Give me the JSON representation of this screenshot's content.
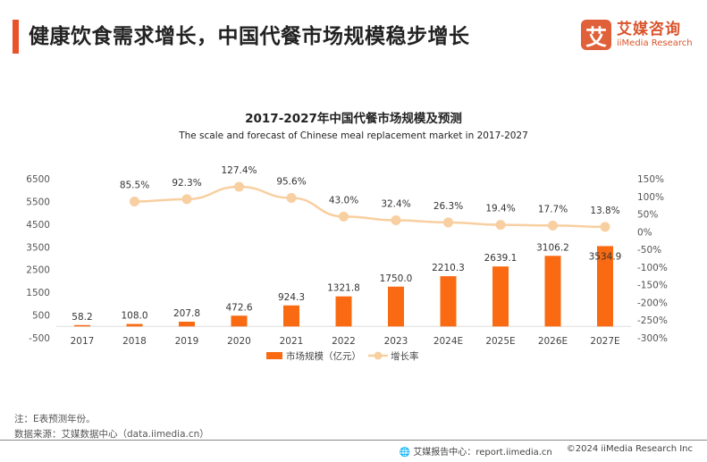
{
  "header": {
    "title": "健康饮食需求增长，中国代餐市场规模稳步增长",
    "logo_cn": "艾媒咨询",
    "logo_en": "iiMedia Research",
    "logo_mark": "艾"
  },
  "colors": {
    "bar": "#f96a12",
    "line": "#f8cfa0",
    "accent": "#e8532c"
  },
  "chart_data": {
    "type": "bar+line",
    "title": "2017-2027年中国代餐市场规模及预测",
    "subtitle": "The scale and forecast of Chinese meal replacement market in 2017-2027",
    "categories": [
      "2017",
      "2018",
      "2019",
      "2020",
      "2021",
      "2022",
      "2023",
      "2024E",
      "2025E",
      "2026E",
      "2027E"
    ],
    "series": [
      {
        "name": "市场规模（亿元）",
        "type": "bar",
        "axis": "left",
        "values": [
          58.2,
          108.0,
          207.8,
          472.6,
          924.3,
          1321.8,
          1750.0,
          2210.3,
          2639.1,
          3106.2,
          3534.9
        ],
        "labels": [
          "58.2",
          "108.0",
          "207.8",
          "472.6",
          "924.3",
          "1321.8",
          "1750.0",
          "2210.3",
          "2639.1",
          "3106.2",
          "3534.9"
        ]
      },
      {
        "name": "增长率",
        "type": "line",
        "axis": "right",
        "values": [
          null,
          85.5,
          92.3,
          127.4,
          95.6,
          43.0,
          32.4,
          26.3,
          19.4,
          17.7,
          13.8
        ],
        "labels": [
          "",
          "85.5%",
          "92.3%",
          "127.4%",
          "95.6%",
          "43.0%",
          "32.4%",
          "26.3%",
          "19.4%",
          "17.7%",
          "13.8%"
        ]
      }
    ],
    "y_left": {
      "ticks": [
        "6500",
        "5500",
        "4500",
        "3500",
        "2500",
        "1500",
        "500",
        "-500"
      ],
      "range": [
        -500,
        6500
      ]
    },
    "y_right": {
      "ticks": [
        "150%",
        "100%",
        "50%",
        "0%",
        "-50%",
        "-100%",
        "-150%",
        "-200%",
        "-250%",
        "-300%"
      ],
      "range": [
        -300,
        150
      ]
    },
    "legend_position": "bottom",
    "grid": false
  },
  "notes": {
    "note": "注：E表预测年份。",
    "source": "数据来源：艾媒数据中心（data.iimedia.cn）"
  },
  "footer": {
    "report": "艾媒报告中心：report.iimedia.cn",
    "copyright": "©2024  iiMedia Research  Inc"
  }
}
